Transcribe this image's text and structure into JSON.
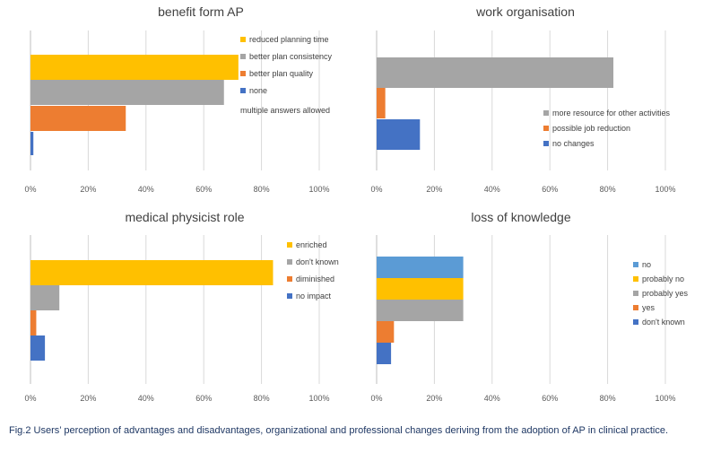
{
  "caption": "Fig.2 Users’ perception of advantages and disadvantages, organizational and professional changes deriving from the adoption of AP in clinical practice.",
  "chart_data": [
    {
      "type": "bar",
      "orientation": "horizontal",
      "title": "benefit form AP",
      "xlim": [
        0,
        100
      ],
      "ticks": [
        "0%",
        "20%",
        "40%",
        "60%",
        "80%",
        "100%"
      ],
      "series": [
        {
          "name": "reduced planning time",
          "value": 72,
          "color": "#ffc000"
        },
        {
          "name": "better plan consistency",
          "value": 67,
          "color": "#a5a5a5"
        },
        {
          "name": "better plan quality",
          "value": 33,
          "color": "#ed7d31"
        },
        {
          "name": "none",
          "value": 1,
          "color": "#4472c4"
        }
      ],
      "legend_note": "multiple answers allowed"
    },
    {
      "type": "bar",
      "orientation": "horizontal",
      "title": "work organisation",
      "xlim": [
        0,
        100
      ],
      "ticks": [
        "0%",
        "20%",
        "40%",
        "60%",
        "80%",
        "100%"
      ],
      "series": [
        {
          "name": "more resource for other activities",
          "value": 82,
          "color": "#a5a5a5"
        },
        {
          "name": "possible job reduction",
          "value": 3,
          "color": "#ed7d31"
        },
        {
          "name": "no changes",
          "value": 15,
          "color": "#4472c4"
        }
      ]
    },
    {
      "type": "bar",
      "orientation": "horizontal",
      "title": "medical physicist role",
      "xlim": [
        0,
        100
      ],
      "ticks": [
        "0%",
        "20%",
        "40%",
        "60%",
        "80%",
        "100%"
      ],
      "series": [
        {
          "name": "enriched",
          "value": 84,
          "color": "#ffc000"
        },
        {
          "name": "don't known",
          "value": 10,
          "color": "#a5a5a5"
        },
        {
          "name": "diminished",
          "value": 2,
          "color": "#ed7d31"
        },
        {
          "name": "no impact",
          "value": 5,
          "color": "#4472c4"
        }
      ]
    },
    {
      "type": "bar",
      "orientation": "horizontal",
      "title": "loss of knowledge",
      "xlim": [
        0,
        100
      ],
      "ticks": [
        "0%",
        "20%",
        "40%",
        "60%",
        "80%",
        "100%"
      ],
      "series": [
        {
          "name": "no",
          "value": 30,
          "color": "#5b9bd5"
        },
        {
          "name": "probably no",
          "value": 30,
          "color": "#ffc000"
        },
        {
          "name": "probably yes",
          "value": 30,
          "color": "#a5a5a5"
        },
        {
          "name": "yes",
          "value": 6,
          "color": "#ed7d31"
        },
        {
          "name": "don't known",
          "value": 5,
          "color": "#4472c4"
        }
      ]
    }
  ]
}
